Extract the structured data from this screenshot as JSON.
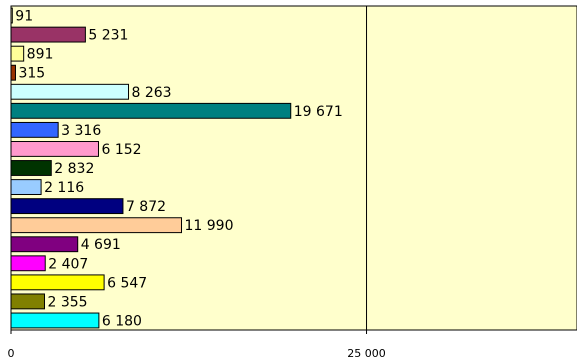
{
  "chart_data": {
    "type": "bar",
    "orientation": "horizontal",
    "values": [
      91,
      5231,
      891,
      315,
      8263,
      19671,
      3316,
      6152,
      2832,
      2116,
      7872,
      11990,
      4691,
      2407,
      6547,
      2355,
      6180
    ],
    "value_labels": [
      "91",
      "5 231",
      "891",
      "315",
      "8 263",
      "19 671",
      "3 316",
      "6 152",
      "2 832",
      "2 116",
      "7 872",
      "11 990",
      "4 691",
      "2 407",
      "6 547",
      "2 355",
      "6 180"
    ],
    "colors": [
      "#ffffc0",
      "#993366",
      "#ffff99",
      "#993300",
      "#ccffff",
      "#008080",
      "#3366ff",
      "#ff99cc",
      "#003300",
      "#99ccff",
      "#000080",
      "#ffcc99",
      "#800080",
      "#ff00ff",
      "#ffff00",
      "#808000",
      "#00ffff"
    ],
    "x_ticks": [
      "0",
      "25 000"
    ],
    "x_tick_values": [
      0,
      25000
    ],
    "xlim": [
      0,
      39800
    ],
    "grid": "vertical",
    "plot_background": "#ffffcc",
    "title": "",
    "xlabel": "",
    "ylabel": ""
  }
}
